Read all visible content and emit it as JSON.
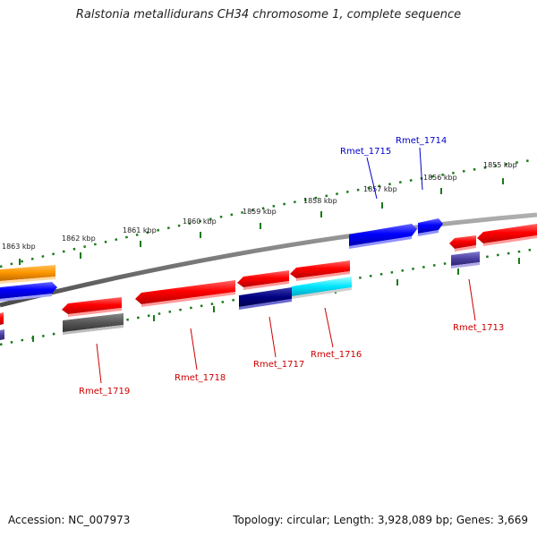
{
  "title": "Ralstonia metallidurans CH34 chromosome 1, complete sequence",
  "footer": {
    "accession": "Accession: NC_007973",
    "summary": "Topology: circular; Length: 3,928,089 bp; Genes: 3,669"
  },
  "map": {
    "tick_labels": [
      {
        "label": "1863 kbp"
      },
      {
        "label": "1862 kbp"
      },
      {
        "label": "1861 kbp"
      },
      {
        "label": "1860 kbp"
      },
      {
        "label": "1859 kbp"
      },
      {
        "label": "1858 kbp"
      },
      {
        "label": "1857 kbp"
      },
      {
        "label": "1856 kbp"
      },
      {
        "label": "1855 kbp"
      }
    ],
    "gene_labels": [
      {
        "name": "Rmet_1715",
        "color": "#0000cc"
      },
      {
        "name": "Rmet_1714",
        "color": "#0000cc"
      },
      {
        "name": "Rmet_1713",
        "color": "#cc0000"
      },
      {
        "name": "Rmet_1716",
        "color": "#cc0000"
      },
      {
        "name": "Rmet_1717",
        "color": "#cc0000"
      },
      {
        "name": "Rmet_1718",
        "color": "#cc0000"
      },
      {
        "name": "Rmet_1719",
        "color": "#cc0000"
      }
    ],
    "colors": {
      "forward_gene": "#0000ff",
      "reverse_gene": "#ff0000",
      "orange_feature": "#ff9900",
      "gray_feature": "#555555",
      "navy_feature": "#000080",
      "cyan_feature": "#00e5ff",
      "purple_feature": "#4b3fa0",
      "tick_marks": "#1a7a1a",
      "backbone": "#808080"
    }
  }
}
